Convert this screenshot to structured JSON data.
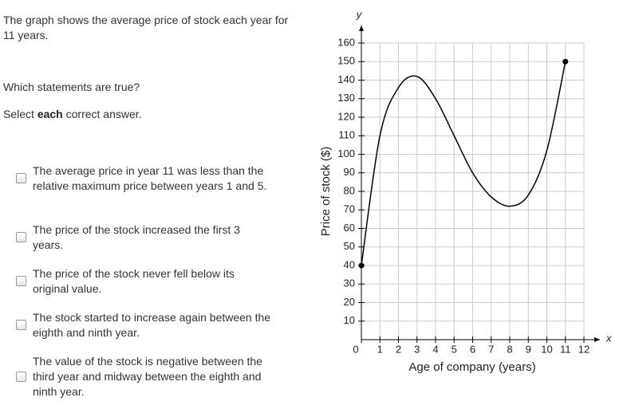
{
  "question": {
    "prompt": "The graph shows the average price of stock each year for 11 years.",
    "ask": "Which statements are true?",
    "instruction_prefix": "Select",
    "instruction_bold": "each",
    "instruction_suffix": "correct answer."
  },
  "options": [
    "The average price in year 11 was less than the relative maximum price between years 1 and 5.",
    "The price of the stock increased the first 3 years.",
    "The price of the stock never fell below its original value.",
    "The stock started to increase again between the eighth and ninth year.",
    "The value of the stock is negative between the third year and midway between the eighth and ninth year."
  ],
  "chart_data": {
    "type": "line",
    "x_label": "Age of company (years)",
    "y_label": "Price of stock ($)",
    "x_axis_letter": "x",
    "y_axis_letter": "y",
    "x": [
      0,
      1,
      2,
      3,
      4,
      5,
      6,
      7,
      8,
      9,
      10,
      11
    ],
    "series": [
      {
        "name": "Price",
        "color": "#000000",
        "values": [
          40,
          110,
          136,
          142,
          130,
          110,
          90,
          77,
          72,
          78,
          102,
          150
        ]
      }
    ],
    "xlim": [
      0,
      12
    ],
    "xticks": [
      0,
      1,
      2,
      3,
      4,
      5,
      6,
      7,
      8,
      9,
      10,
      11,
      12
    ],
    "ylim": [
      0,
      160
    ],
    "yticks": [
      10,
      20,
      30,
      40,
      50,
      60,
      70,
      80,
      90,
      100,
      110,
      120,
      130,
      140,
      150,
      160
    ],
    "grid": true
  }
}
